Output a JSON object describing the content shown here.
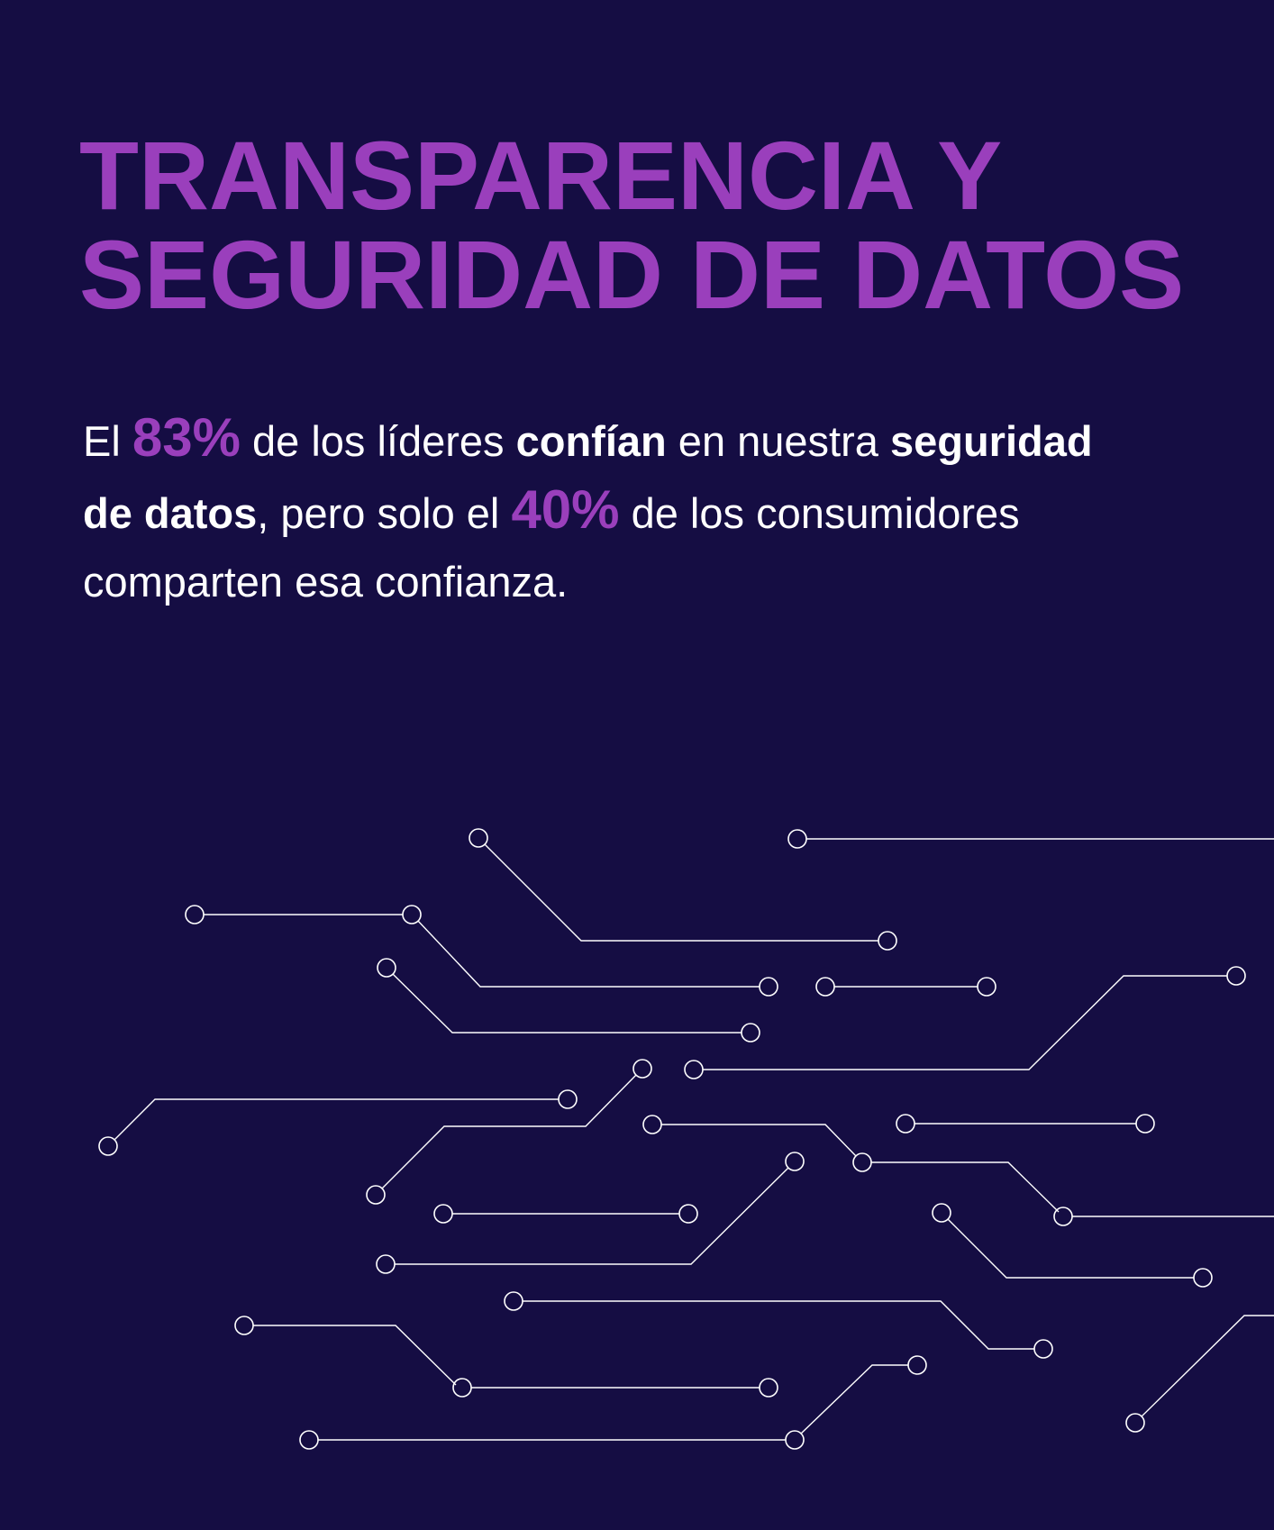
{
  "headline": {
    "line1": "TRANSPARENCIA Y",
    "line2": "SEGURIDAD DE DATOS"
  },
  "statement": {
    "seg1": "El ",
    "pct_leaders": "83%",
    "seg2": " de los líderes ",
    "bold1": "confían",
    "seg3": " en nuestra ",
    "bold2a": "seguridad",
    "bold2b": "de datos",
    "seg4": ", pero solo el ",
    "pct_consumers": "40%",
    "seg5": " de los consumidores",
    "seg6": "comparten esa confianza."
  },
  "colors": {
    "background": "#150d43",
    "accent": "#9a3fbc",
    "text": "#ffffff"
  },
  "decoration": "circuit-lines-graphic"
}
